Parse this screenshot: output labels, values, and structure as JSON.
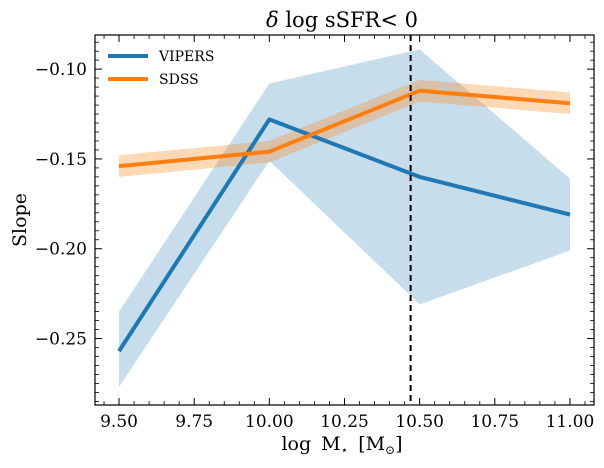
{
  "chart_data": {
    "type": "line",
    "title_parts": {
      "delta": "δ",
      "log": "log",
      "ssfr": "sSFR",
      "cond": "< 0"
    },
    "xlabel_parts": {
      "log": "log",
      "m": "M",
      "star": "⋆",
      "unit_open": "[M",
      "sun": "⊙",
      "unit_close": "]"
    },
    "ylabel": "Slope",
    "xlim": [
      9.42,
      11.08
    ],
    "ylim": [
      -0.287,
      -0.081
    ],
    "xticks": [
      9.5,
      9.75,
      10.0,
      10.25,
      10.5,
      10.75,
      11.0
    ],
    "xtick_labels": [
      "9.50",
      "9.75",
      "10.00",
      "10.25",
      "10.50",
      "10.75",
      "11.00"
    ],
    "yticks": [
      -0.25,
      -0.2,
      -0.15,
      -0.1
    ],
    "ytick_labels": [
      "−0.25",
      "−0.20",
      "−0.15",
      "−0.10"
    ],
    "vline": {
      "x": 10.47,
      "style": "dashed",
      "color": "#000000"
    },
    "legend_position": "top-left",
    "series": [
      {
        "name": "VIPERS",
        "color": "#1f77b4",
        "x": [
          9.5,
          10.0,
          10.5,
          11.0
        ],
        "values": [
          -0.257,
          -0.128,
          -0.16,
          -0.181
        ],
        "band_upper": [
          -0.235,
          -0.108,
          -0.089,
          -0.161
        ],
        "band_lower": [
          -0.277,
          -0.151,
          -0.231,
          -0.201
        ]
      },
      {
        "name": "SDSS",
        "color": "#ff7f0e",
        "x": [
          9.5,
          10.0,
          10.5,
          11.0
        ],
        "values": [
          -0.154,
          -0.146,
          -0.112,
          -0.119
        ],
        "band_upper": [
          -0.148,
          -0.14,
          -0.106,
          -0.113
        ],
        "band_lower": [
          -0.16,
          -0.152,
          -0.118,
          -0.125
        ]
      }
    ]
  }
}
